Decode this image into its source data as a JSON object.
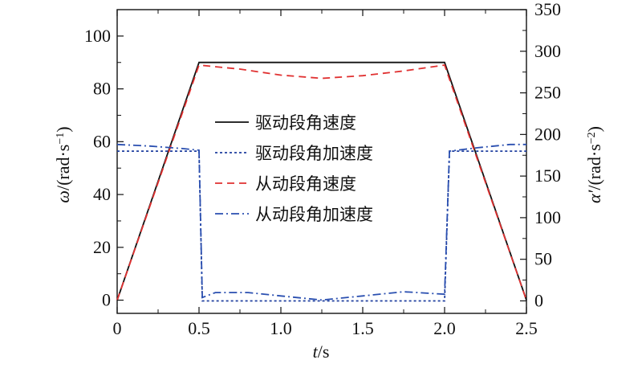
{
  "chart_data": {
    "type": "line",
    "x": [
      0,
      0.5,
      2.0,
      2.5
    ],
    "xlim": [
      0,
      2.5
    ],
    "ylim": [
      -5,
      110
    ],
    "y2lim": [
      -15,
      350
    ],
    "x_ticks": [
      "0",
      "0.5",
      "1.0",
      "1.5",
      "2.0",
      "2.5"
    ],
    "y_ticks": [
      "0",
      "20",
      "40",
      "60",
      "80",
      "100"
    ],
    "y2_ticks": [
      "0",
      "50",
      "100",
      "150",
      "200",
      "250",
      "300",
      "350"
    ],
    "xlabel_var": "t",
    "xlabel_unit": "/s",
    "ylabel_var": "ω",
    "ylabel_unit": "/(rad·s",
    "ylabel_exp": "−1",
    "ylabel_close": ")",
    "y2label_var": "α′",
    "y2label_unit": "/(rad·s",
    "y2label_exp": "−2",
    "y2label_close": ")",
    "grid": false,
    "legend_position": "center",
    "series": [
      {
        "name": "驱动段角速度",
        "axis": "left",
        "color": "#111111",
        "style": "solid",
        "points": [
          [
            0,
            0
          ],
          [
            0.5,
            90
          ],
          [
            1.0,
            90
          ],
          [
            1.5,
            90
          ],
          [
            2.0,
            90
          ],
          [
            2.5,
            0
          ]
        ]
      },
      {
        "name": "驱动段角加速度",
        "axis": "right",
        "color": "#1f3f9f",
        "style": "dotted",
        "points": [
          [
            0,
            180
          ],
          [
            0.49,
            180
          ],
          [
            0.5,
            180
          ],
          [
            0.52,
            0
          ],
          [
            1.0,
            0
          ],
          [
            1.5,
            0
          ],
          [
            2.0,
            0
          ],
          [
            2.03,
            180
          ],
          [
            2.5,
            180
          ]
        ]
      },
      {
        "name": "从动段角速度",
        "axis": "left",
        "color": "#e03030",
        "style": "dashed",
        "points": [
          [
            0,
            0
          ],
          [
            0.5,
            89
          ],
          [
            0.75,
            87.5
          ],
          [
            1.0,
            85.2
          ],
          [
            1.25,
            84
          ],
          [
            1.5,
            85
          ],
          [
            1.75,
            86.8
          ],
          [
            2.0,
            89
          ],
          [
            2.5,
            0
          ]
        ]
      },
      {
        "name": "从动段角加速度",
        "axis": "right",
        "color": "#2a4fb0",
        "style": "dashdot",
        "points": [
          [
            0,
            188
          ],
          [
            0.2,
            186
          ],
          [
            0.4,
            183
          ],
          [
            0.5,
            181
          ],
          [
            0.52,
            4
          ],
          [
            0.6,
            10
          ],
          [
            0.8,
            10
          ],
          [
            1.0,
            6
          ],
          [
            1.25,
            1
          ],
          [
            1.5,
            6
          ],
          [
            1.75,
            11
          ],
          [
            2.0,
            8
          ],
          [
            2.03,
            180
          ],
          [
            2.2,
            184
          ],
          [
            2.4,
            188
          ],
          [
            2.5,
            188
          ]
        ]
      }
    ]
  }
}
